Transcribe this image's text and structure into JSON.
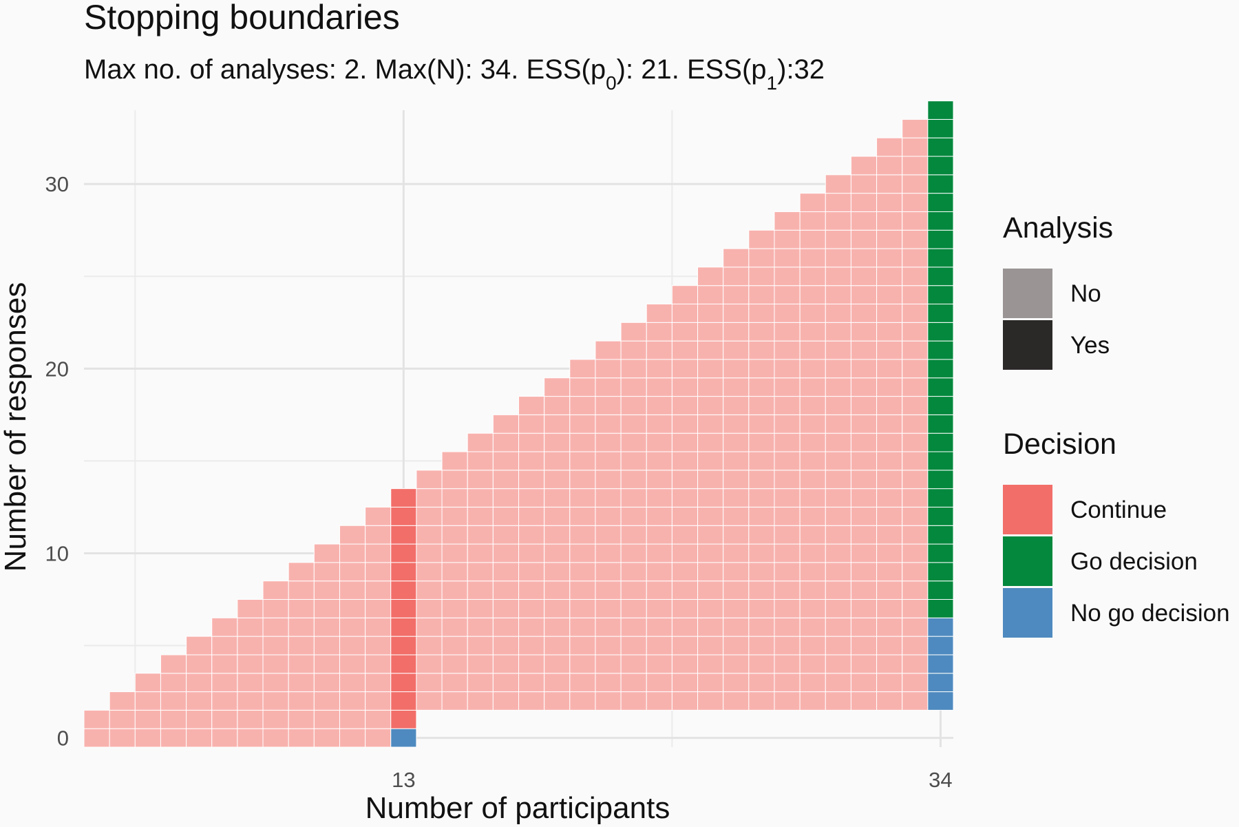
{
  "chart_data": {
    "type": "heatmap",
    "title": "Stopping boundaries",
    "subtitle": {
      "parts": [
        {
          "text": "Max no. of analyses: 2. Max(N): 34. ESS(p"
        },
        {
          "text": "0",
          "sub": true
        },
        {
          "text": "): 21. ESS(p"
        },
        {
          "text": "1",
          "sub": true
        },
        {
          "text": "):32"
        }
      ]
    },
    "xlabel": "Number of participants",
    "ylabel": "Number of responses",
    "x_ticks": [
      "13",
      "34"
    ],
    "y_ticks": [
      "0",
      "10",
      "20",
      "30"
    ],
    "xlim": [
      0.5,
      34.5
    ],
    "ylim": [
      -0.5,
      34
    ],
    "grid": true,
    "analysis_points": [
      13,
      34
    ],
    "max_n": 34,
    "cells_rule": "one tile per (n, r) with 0 <= r <= n; tiles for n < 13 cover r in [0, n]",
    "decision_boundaries": [
      {
        "n": 13,
        "no_go_max": 0,
        "go_min": null
      },
      {
        "n": 34,
        "no_go_max": 6,
        "go_min": 7
      }
    ],
    "tiles_below_first_look_hidden": true,
    "legend": {
      "placement": "right",
      "groups": [
        {
          "title": "Analysis",
          "items": [
            {
              "label": "No",
              "color": "#9a9594"
            },
            {
              "label": "Yes",
              "color": "#2b2928"
            }
          ]
        },
        {
          "title": "Decision",
          "items": [
            {
              "label": "Continue",
              "color": "#f26e69"
            },
            {
              "label": "Go decision",
              "color": "#03883d"
            },
            {
              "label": "No go decision",
              "color": "#4e8abf"
            }
          ]
        }
      ]
    },
    "colors": {
      "continue_no_analysis": "#f8b2ae",
      "continue_analysis": "#f26e69",
      "go": "#03883d",
      "no_go": "#4e8abf"
    }
  }
}
